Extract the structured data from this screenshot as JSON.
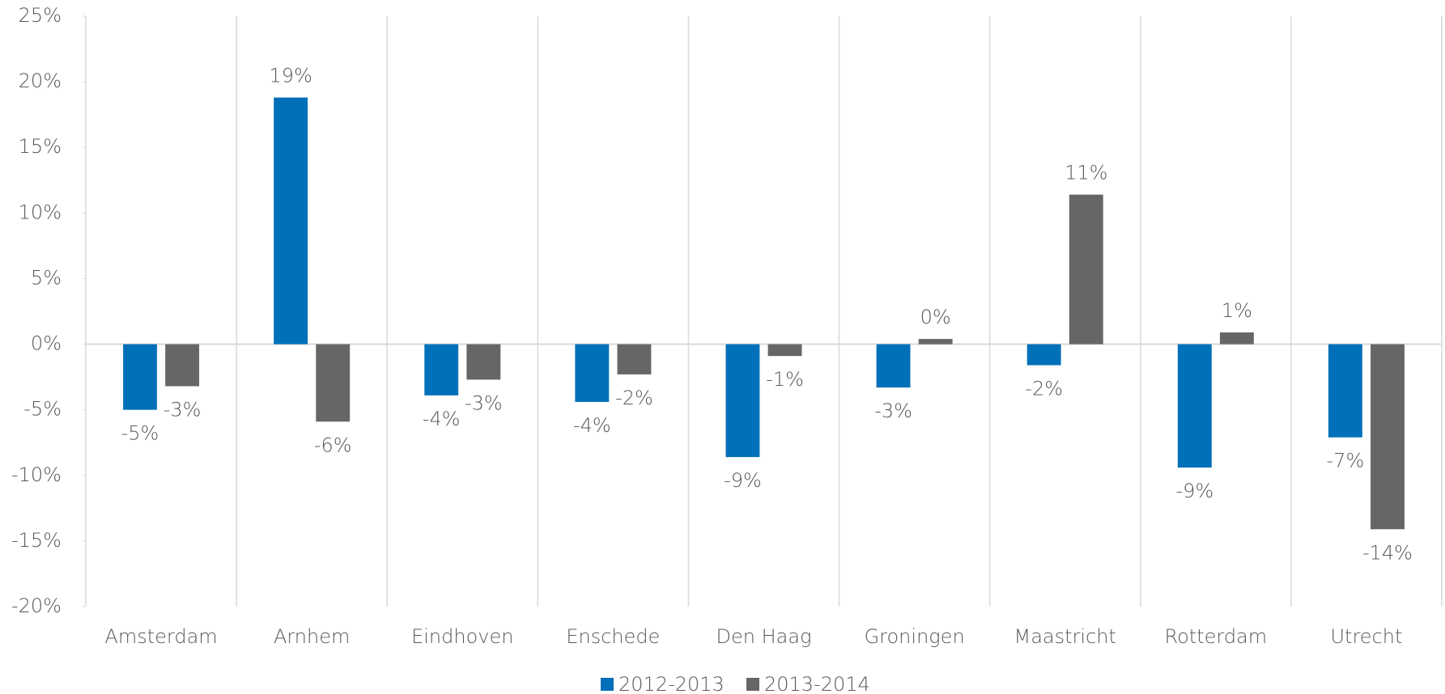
{
  "chart_data": {
    "type": "bar",
    "categories": [
      "Amsterdam",
      "Arnhem",
      "Eindhoven",
      "Enschede",
      "Den Haag",
      "Groningen",
      "Maastricht",
      "Rotterdam",
      "Utrecht"
    ],
    "series": [
      {
        "name": "2012-2013",
        "color": "#0070b8",
        "values": [
          -5.0,
          18.8,
          -3.9,
          -4.4,
          -8.6,
          -3.3,
          -1.6,
          -9.4,
          -7.1
        ],
        "value_labels": [
          "-5%",
          "19%",
          "-4%",
          "-4%",
          "-9%",
          "-3%",
          "-2%",
          "-9%",
          "-7%"
        ]
      },
      {
        "name": "2013-2014",
        "color": "#666666",
        "values": [
          -3.2,
          -5.9,
          -2.7,
          -2.3,
          -0.9,
          0.4,
          11.4,
          0.9,
          -14.1
        ],
        "value_labels": [
          "-3%",
          "-6%",
          "-3%",
          "-2%",
          "-1%",
          "0%",
          "11%",
          "1%",
          "-14%"
        ]
      }
    ],
    "ylim": [
      -20,
      25
    ],
    "yticks": [
      {
        "value": -20,
        "label": "-20%"
      },
      {
        "value": -15,
        "label": "-15%"
      },
      {
        "value": -10,
        "label": "-10%"
      },
      {
        "value": -5,
        "label": "-5%"
      },
      {
        "value": 0,
        "label": "0%"
      },
      {
        "value": 5,
        "label": "5%"
      },
      {
        "value": 10,
        "label": "10%"
      },
      {
        "value": 15,
        "label": "15%"
      },
      {
        "value": 20,
        "label": "20%"
      },
      {
        "value": 25,
        "label": "25%"
      }
    ],
    "legend": "bottom"
  }
}
